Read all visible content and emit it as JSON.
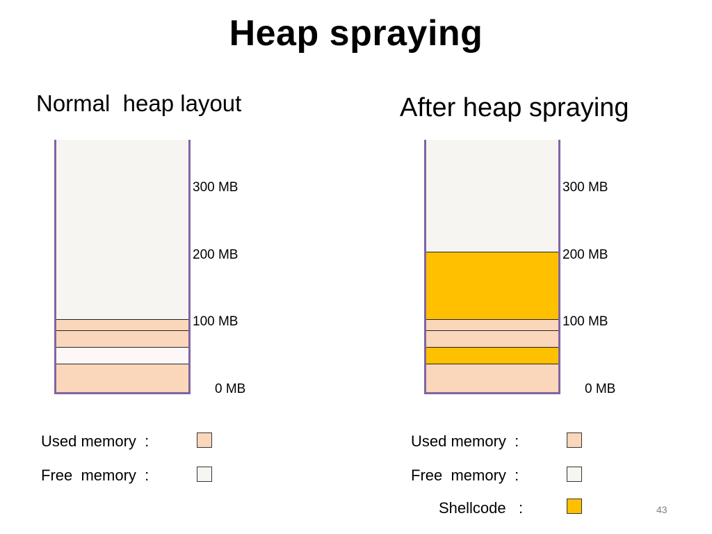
{
  "slide": {
    "title": "Heap spraying",
    "number": "43"
  },
  "colors": {
    "used": "#fad6bb",
    "free": "#f6f5f1",
    "free_alt": "#fdf8f7",
    "shellcode": "#ffc000",
    "column_border": "#8064a2"
  },
  "left": {
    "title": "Normal  heap layout",
    "ticks": [
      "300 MB",
      "200 MB",
      "100 MB",
      "0 MB"
    ],
    "segments_bottom_to_top": [
      "used",
      "free",
      "used",
      "used",
      "free"
    ],
    "legend": [
      {
        "label": "Used memory  :",
        "kind": "used"
      },
      {
        "label": "Free  memory  :",
        "kind": "free"
      }
    ]
  },
  "right": {
    "title": "After heap spraying",
    "ticks": [
      "300 MB",
      "200 MB",
      "100 MB",
      "0 MB"
    ],
    "segments_bottom_to_top": [
      "used",
      "shellcode",
      "used",
      "used",
      "shellcode",
      "free"
    ],
    "legend": [
      {
        "label": "Used memory  :",
        "kind": "used"
      },
      {
        "label": "Free  memory  :",
        "kind": "free"
      },
      {
        "label": "Shellcode   :",
        "kind": "shellcode"
      }
    ]
  }
}
